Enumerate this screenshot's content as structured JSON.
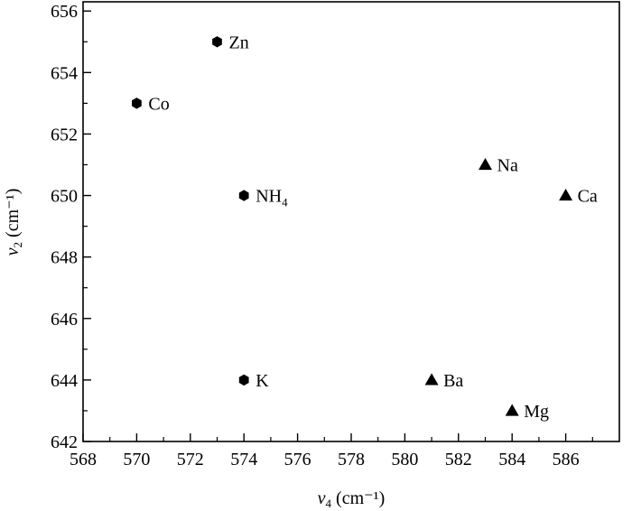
{
  "chart_data": {
    "type": "scatter",
    "x_label": {
      "var": "ν",
      "sub": "4",
      "unit": " (cm⁻¹)"
    },
    "y_label": {
      "var": "ν",
      "sub": "2",
      "unit": " (cm⁻¹)"
    },
    "xlim": [
      568,
      588
    ],
    "ylim": [
      642,
      656.3
    ],
    "x_ticks": [
      568,
      570,
      572,
      574,
      576,
      578,
      580,
      582,
      584,
      586
    ],
    "y_ticks": [
      642,
      644,
      646,
      648,
      650,
      652,
      654,
      656
    ],
    "grid": false,
    "points": [
      {
        "label": "Zn",
        "x": 573,
        "y": 655,
        "marker": "hexagon"
      },
      {
        "label": "Co",
        "x": 570,
        "y": 653,
        "marker": "hexagon"
      },
      {
        "label": "NH",
        "sub": "4",
        "x": 574,
        "y": 650,
        "marker": "hexagon"
      },
      {
        "label": "K",
        "x": 574,
        "y": 644,
        "marker": "hexagon"
      },
      {
        "label": "Na",
        "x": 583,
        "y": 651,
        "marker": "triangle"
      },
      {
        "label": "Ca",
        "x": 586,
        "y": 650,
        "marker": "triangle"
      },
      {
        "label": "Ba",
        "x": 581,
        "y": 644,
        "marker": "triangle"
      },
      {
        "label": "Mg",
        "x": 584,
        "y": 643,
        "marker": "triangle"
      }
    ]
  }
}
